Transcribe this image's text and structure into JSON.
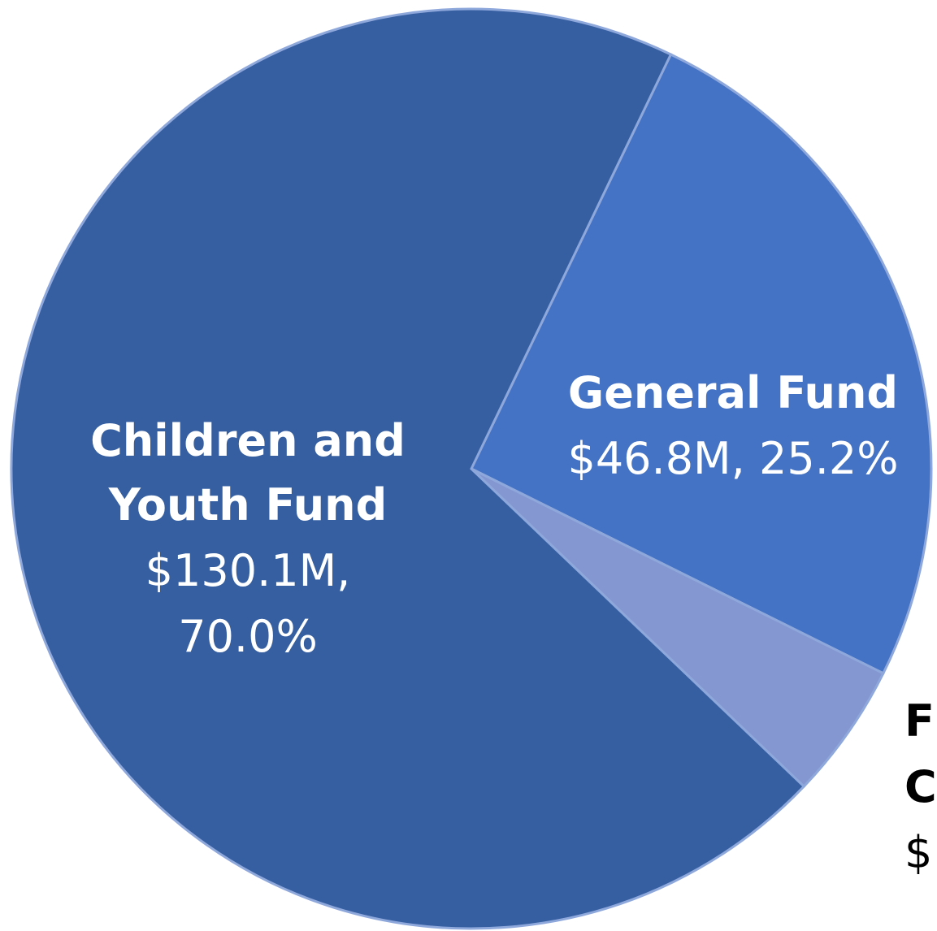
{
  "chart_data": {
    "type": "pie",
    "title": "",
    "slices": [
      {
        "name": "General Fund",
        "amount": "$46.8M",
        "percent_label": "25.2%",
        "value": 25.2,
        "color": "#4472C4",
        "label_color": "#ffffff"
      },
      {
        "name": "F C",
        "amount": "$",
        "percent_label": "",
        "value": 4.8,
        "color": "#8497D0",
        "label_color": "#000000"
      },
      {
        "name": "Children and Youth Fund",
        "amount": "$130.1M,",
        "percent_label": "70.0%",
        "value": 70.0,
        "color": "#365FA1",
        "label_color": "#ffffff"
      }
    ],
    "labels": {
      "general_fund": {
        "name": "General Fund",
        "value_line": "$46.8M, 25.2%"
      },
      "children_youth_fund": {
        "name_line1": "Children and",
        "name_line2": "Youth Fund",
        "value_line1": "$130.1M,",
        "value_line2": "70.0%"
      },
      "cut_off_fund": {
        "line1": "F",
        "line2": "C",
        "line3": "$"
      }
    }
  }
}
